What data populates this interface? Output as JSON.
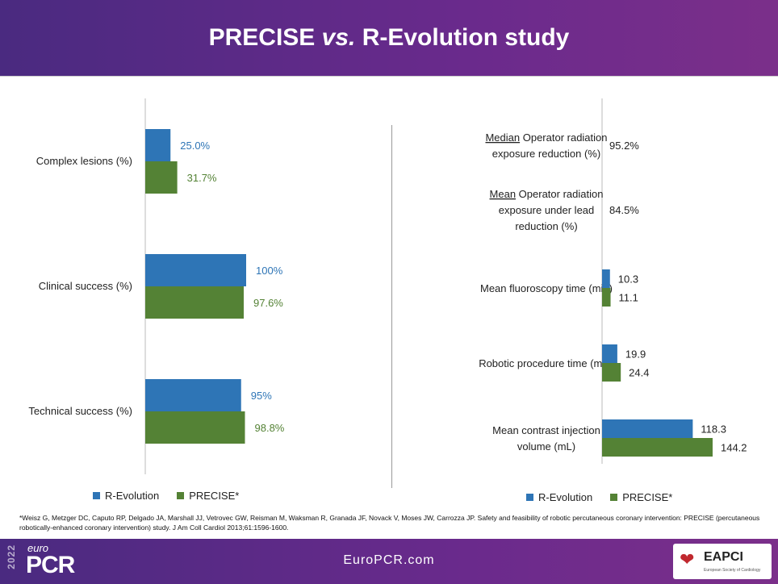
{
  "header": {
    "title_main": "PRECISE ",
    "title_em": "vs.",
    "title_tail": " R-Evolution study"
  },
  "colors": {
    "r_evolution": "#2e75b6",
    "precise": "#548235"
  },
  "legend": {
    "r_evolution": "R-Evolution",
    "precise": "PRECISE*"
  },
  "chart_data": [
    {
      "type": "bar",
      "orientation": "horizontal",
      "categories": [
        "Complex lesions (%)",
        "Clinical success (%)",
        "Technical success (%)"
      ],
      "series": [
        {
          "name": "R-Evolution",
          "values": [
            25.0,
            100,
            95
          ],
          "labels": [
            "25.0%",
            "100%",
            "95%"
          ]
        },
        {
          "name": "PRECISE*",
          "values": [
            31.7,
            97.6,
            98.8
          ],
          "labels": [
            "31.7%",
            "97.6%",
            "98.8%"
          ]
        }
      ],
      "xlim": [
        0,
        100
      ]
    },
    {
      "type": "bar",
      "orientation": "horizontal",
      "categories": [
        {
          "underline": "Median",
          "rest": " Operator radiation",
          "line2": "exposure reduction (%)",
          "line3": ""
        },
        {
          "underline": "Mean",
          "rest": " Operator radiation",
          "line2": "exposure under lead",
          "line3": "reduction (%)"
        },
        {
          "underline": "",
          "rest": "Mean fluoroscopy time (min)",
          "line2": "",
          "line3": ""
        },
        {
          "underline": "",
          "rest": "Robotic procedure time (min)",
          "line2": "",
          "line3": ""
        },
        {
          "underline": "",
          "rest": "Mean contrast injection",
          "line2": "volume (mL)",
          "line3": ""
        }
      ],
      "series": [
        {
          "name": "R-Evolution",
          "values": [
            null,
            null,
            10.3,
            19.9,
            118.3
          ],
          "labels": [
            "",
            "",
            "10.3",
            "19.9",
            "118.3"
          ]
        },
        {
          "name": "PRECISE*",
          "values": [
            null,
            null,
            11.1,
            24.4,
            144.2
          ],
          "labels": [
            "",
            "",
            "11.1",
            "24.4",
            "144.2"
          ]
        }
      ],
      "text_values": [
        "95.2%",
        "84.5%",
        null,
        null,
        null
      ]
    }
  ],
  "footnote": "*Weisz G, Metzger DC, Caputo RP, Delgado JA, Marshall JJ, Vetrovec GW, Reisman M, Waksman R, Granada JF, Novack V, Moses JW, Carrozza JP. Safety and feasibility of robotic percutaneous coronary intervention: PRECISE (percutaneous robotically-enhanced coronary intervention) study. J Am Coll Cardiol 2013;61:1596-1600.",
  "footer": {
    "year": "2022",
    "euro": "euro",
    "pcr": "PCR",
    "url": "EuroPCR.com",
    "logo_name": "EAPCI",
    "logo_sub": "European Society of Cardiology"
  }
}
